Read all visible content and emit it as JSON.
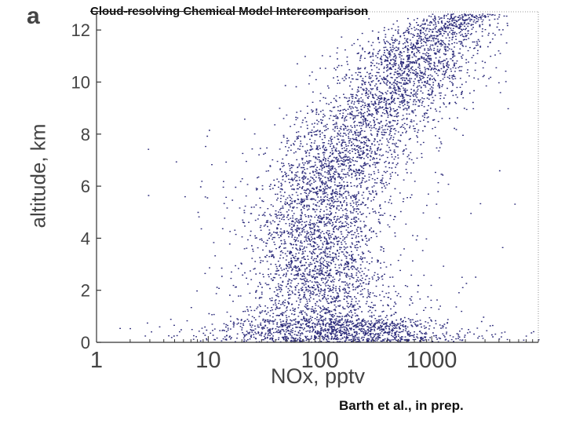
{
  "panel_label": "a",
  "citation": "Barth et al., in prep.",
  "chart_data": {
    "type": "scatter",
    "title": "Cloud-resolving Chemical Model Intercomparison",
    "xlabel": "NOx, pptv",
    "ylabel": "altitude, km",
    "xscale": "log",
    "xlim": [
      1,
      9000
    ],
    "ylim": [
      0,
      12.7
    ],
    "x_ticks": [
      1,
      10,
      100,
      1000
    ],
    "x_tick_labels": [
      "1",
      "10",
      "100",
      "1000"
    ],
    "y_ticks": [
      0,
      2,
      4,
      6,
      8,
      10,
      12
    ],
    "y_tick_labels": [
      "0",
      "2",
      "4",
      "6",
      "8",
      "10",
      "12"
    ],
    "grid": false,
    "color": "#2b2a7a",
    "profile": [
      {
        "altitude": 0.3,
        "nox_median": 150,
        "log10_spread": 0.6
      },
      {
        "altitude": 1.0,
        "nox_median": 110,
        "log10_spread": 0.4
      },
      {
        "altitude": 2.0,
        "nox_median": 100,
        "log10_spread": 0.32
      },
      {
        "altitude": 3.0,
        "nox_median": 95,
        "log10_spread": 0.3
      },
      {
        "altitude": 4.0,
        "nox_median": 95,
        "log10_spread": 0.3
      },
      {
        "altitude": 5.0,
        "nox_median": 100,
        "log10_spread": 0.3
      },
      {
        "altitude": 6.0,
        "nox_median": 115,
        "log10_spread": 0.3
      },
      {
        "altitude": 7.0,
        "nox_median": 150,
        "log10_spread": 0.3
      },
      {
        "altitude": 8.0,
        "nox_median": 220,
        "log10_spread": 0.3
      },
      {
        "altitude": 9.0,
        "nox_median": 350,
        "log10_spread": 0.3
      },
      {
        "altitude": 10.0,
        "nox_median": 550,
        "log10_spread": 0.28
      },
      {
        "altitude": 11.0,
        "nox_median": 650,
        "log10_spread": 0.28
      },
      {
        "altitude": 12.0,
        "nox_median": 1100,
        "log10_spread": 0.22
      },
      {
        "altitude": 12.6,
        "nox_median": 2000,
        "log10_spread": 0.15
      }
    ]
  }
}
